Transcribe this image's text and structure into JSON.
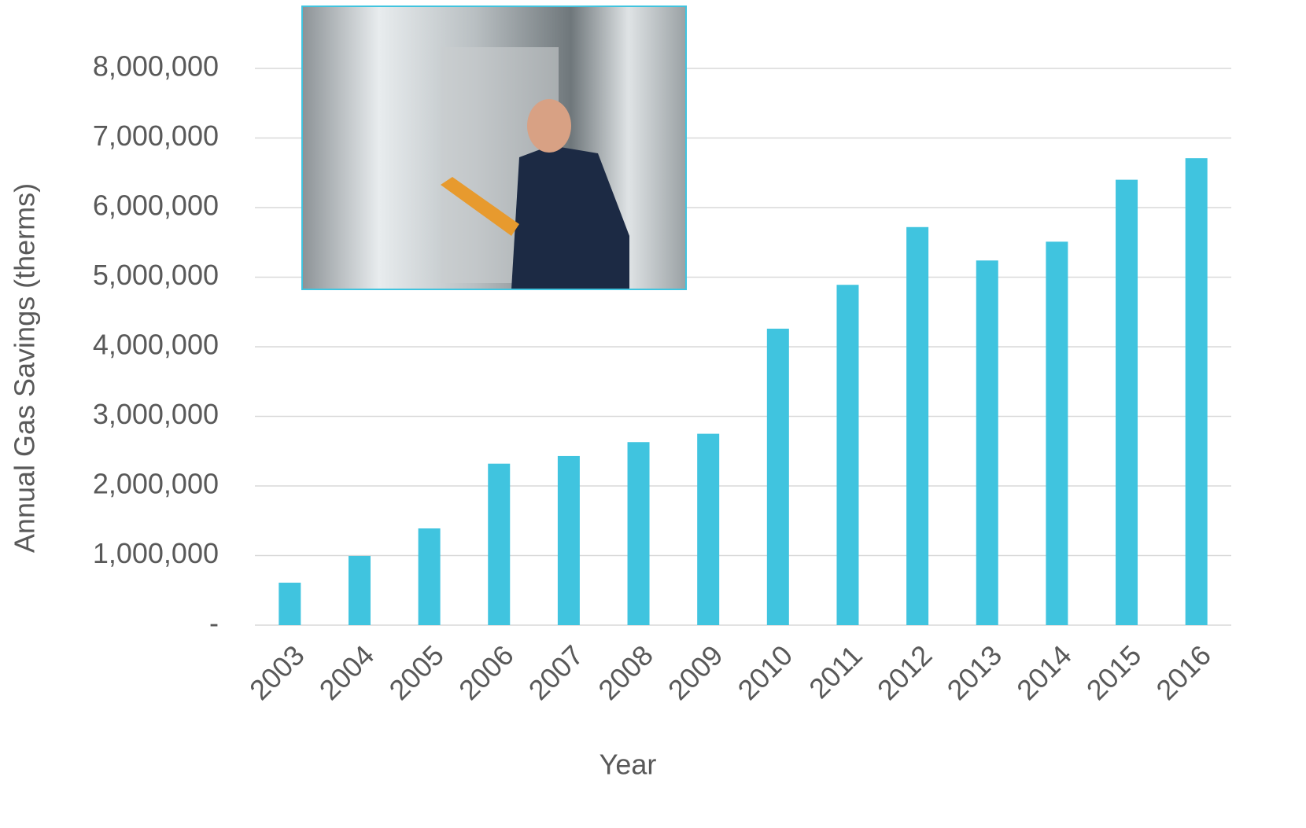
{
  "chart_data": {
    "type": "bar",
    "x_label": "Year",
    "y_label": "Annual Gas Savings (therms)",
    "categories": [
      "2003",
      "2004",
      "2005",
      "2006",
      "2007",
      "2008",
      "2009",
      "2010",
      "2011",
      "2012",
      "2013",
      "2014",
      "2015",
      "2016"
    ],
    "values": [
      610000,
      995000,
      1390000,
      2320000,
      2430000,
      2630000,
      2750000,
      4260000,
      4890000,
      5720000,
      5240000,
      5510000,
      6400000,
      6710000
    ],
    "color": "#40c4df",
    "ylim": [
      0,
      8000000
    ],
    "yticks": [
      {
        "value": 0,
        "label": "-"
      },
      {
        "value": 1000000,
        "label": "1,000,000"
      },
      {
        "value": 2000000,
        "label": "2,000,000"
      },
      {
        "value": 3000000,
        "label": "3,000,000"
      },
      {
        "value": 4000000,
        "label": "4,000,000"
      },
      {
        "value": 5000000,
        "label": "5,000,000"
      },
      {
        "value": 6000000,
        "label": "6,000,000"
      },
      {
        "value": 7000000,
        "label": "7,000,000"
      },
      {
        "value": 8000000,
        "label": "8,000,000"
      }
    ],
    "grid": true
  }
}
